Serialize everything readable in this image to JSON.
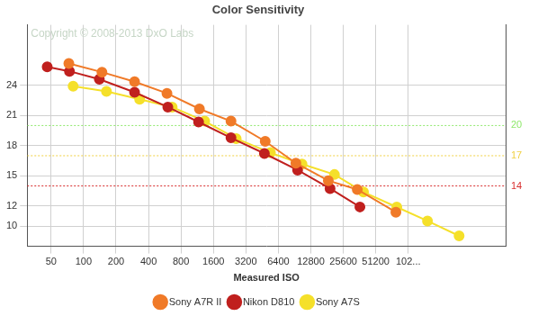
{
  "chart_data": {
    "type": "line",
    "title": "Color Sensitivity",
    "x_label": "Measured ISO",
    "annotations": [
      "Copyright © 2008-2013 DxO Labs"
    ],
    "log": "x",
    "grid": true,
    "legend": "bottom",
    "marker": "circle",
    "xlim": [
      30,
      819200
    ],
    "xticks": [
      50,
      100,
      200,
      400,
      800,
      1600,
      3200,
      6400,
      12800,
      25600,
      51200,
      {
        "value": 102400,
        "label": "102..."
      }
    ],
    "ylim": [
      8,
      30
    ],
    "yticks": [
      10,
      12,
      15,
      18,
      21,
      24
    ],
    "reference_lines": [
      {
        "value": 20,
        "color": "#8ee86a"
      },
      {
        "value": 17,
        "color": "#f0d040"
      },
      {
        "value": 14,
        "color": "#d83030"
      }
    ],
    "series": [
      {
        "name": "Sony A7R II",
        "color": "#f07a28",
        "x": [
          73,
          148,
          297,
          593,
          1186,
          2327,
          4834,
          9300,
          18600,
          34500,
          78700
        ],
        "values": [
          26.17,
          25.3,
          24.35,
          23.2,
          21.65,
          20.43,
          18.43,
          16.26,
          14.52,
          13.65,
          11.39
        ]
      },
      {
        "name": "Nikon D810",
        "color": "#c0201e",
        "x": [
          46,
          74,
          140,
          297,
          604,
          1165,
          2327,
          4750,
          9650,
          19300,
          36500
        ],
        "values": [
          25.83,
          25.39,
          24.6,
          23.3,
          21.83,
          20.35,
          18.78,
          17.22,
          15.57,
          13.74,
          11.91
        ]
      },
      {
        "name": "Sony A7S",
        "color": "#f5e02a",
        "x": [
          80,
          163,
          331,
          663,
          1327,
          2600,
          5400,
          10600,
          21200,
          39400,
          80200,
          154500,
          303500
        ],
        "values": [
          23.9,
          23.39,
          22.6,
          21.83,
          20.43,
          18.7,
          17.3,
          16.17,
          15.13,
          13.39,
          11.9,
          10.52,
          9.04
        ]
      }
    ]
  }
}
